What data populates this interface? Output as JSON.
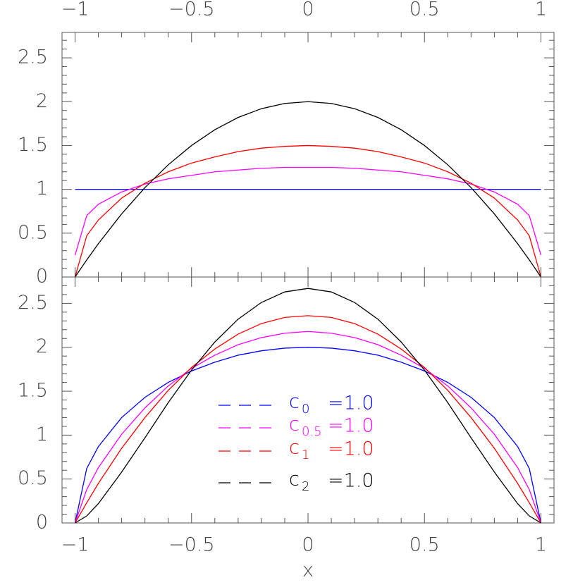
{
  "chart_data": [
    {
      "type": "line",
      "x": [
        -1,
        -0.95,
        -0.9,
        -0.8,
        -0.7,
        -0.6,
        -0.5,
        -0.4,
        -0.3,
        -0.2,
        -0.1,
        0,
        0.1,
        0.2,
        0.3,
        0.4,
        0.5,
        0.6,
        0.7,
        0.8,
        0.9,
        0.95,
        1
      ],
      "xlim": [
        -1.056,
        1.056
      ],
      "ylim": [
        0,
        2.79
      ],
      "xticks": [
        {
          "value": -1,
          "label": "−1"
        },
        {
          "value": -0.5,
          "label": "−0.5"
        },
        0,
        0.5,
        1
      ],
      "yticks": [
        0,
        0.5,
        1,
        1.5,
        2,
        2.5
      ],
      "xminorticks": [
        -0.9,
        -0.8,
        -0.7,
        -0.6,
        -0.4,
        -0.3,
        -0.2,
        -0.1,
        0.1,
        0.2,
        0.3,
        0.4,
        0.6,
        0.7,
        0.8,
        0.9
      ],
      "yminorticks": [
        0.1,
        0.2,
        0.3,
        0.4,
        0.6,
        0.7,
        0.8,
        0.9,
        1.1,
        1.2,
        1.3,
        1.4,
        1.6,
        1.7,
        1.8,
        1.9,
        2.1,
        2.2,
        2.3,
        2.4,
        2.6,
        2.7
      ],
      "x_tick_side": "top",
      "series": [
        {
          "color": "#0000ff",
          "values": [
            1,
            1,
            1,
            1,
            1,
            1,
            1,
            1,
            1,
            1,
            1,
            1,
            1,
            1,
            1,
            1,
            1,
            1,
            1,
            1,
            1,
            1,
            1
          ]
        },
        {
          "color": "#ff00ff",
          "values": [
            0.25,
            0.7,
            0.83,
            0.97,
            1.06,
            1.12,
            1.16,
            1.2,
            1.22,
            1.24,
            1.25,
            1.25,
            1.25,
            1.24,
            1.22,
            1.2,
            1.16,
            1.12,
            1.06,
            0.97,
            0.83,
            0.7,
            0.25
          ]
        },
        {
          "color": "#ff0000",
          "values": [
            0,
            0.47,
            0.65,
            0.9,
            1.07,
            1.2,
            1.3,
            1.37,
            1.43,
            1.47,
            1.49,
            1.5,
            1.49,
            1.47,
            1.43,
            1.37,
            1.3,
            1.2,
            1.07,
            0.9,
            0.65,
            0.47,
            0
          ]
        },
        {
          "color": "#000000",
          "values": [
            0,
            0.195,
            0.38,
            0.72,
            1.02,
            1.28,
            1.5,
            1.68,
            1.82,
            1.92,
            1.98,
            2,
            1.98,
            1.92,
            1.82,
            1.68,
            1.5,
            1.28,
            1.02,
            0.72,
            0.38,
            0.195,
            0
          ]
        }
      ]
    },
    {
      "type": "line",
      "x": [
        -1,
        -0.95,
        -0.9,
        -0.8,
        -0.7,
        -0.6,
        -0.5,
        -0.4,
        -0.3,
        -0.2,
        -0.1,
        0,
        0.1,
        0.2,
        0.3,
        0.4,
        0.5,
        0.6,
        0.7,
        0.8,
        0.9,
        0.95,
        1
      ],
      "xlim": [
        -1.056,
        1.056
      ],
      "ylim": [
        0,
        2.8
      ],
      "xticks": [
        {
          "value": -1,
          "label": "−1"
        },
        {
          "value": -0.5,
          "label": "−0.5"
        },
        0,
        0.5,
        1
      ],
      "yticks": [
        0,
        0.5,
        1,
        1.5,
        2,
        2.5
      ],
      "xminorticks": [
        -0.9,
        -0.8,
        -0.7,
        -0.6,
        -0.4,
        -0.3,
        -0.2,
        -0.1,
        0.1,
        0.2,
        0.3,
        0.4,
        0.6,
        0.7,
        0.8,
        0.9
      ],
      "yminorticks": [
        0.1,
        0.2,
        0.3,
        0.4,
        0.6,
        0.7,
        0.8,
        0.9,
        1.1,
        1.2,
        1.3,
        1.4,
        1.6,
        1.7,
        1.8,
        1.9,
        2.1,
        2.2,
        2.3,
        2.4,
        2.6,
        2.7
      ],
      "x_tick_side": "bottom",
      "xlabel": "x",
      "series": [
        {
          "name": "c",
          "subscript": "0",
          "value_text": "=1.0",
          "color": "#0000ff",
          "values": [
            0,
            0.62,
            0.87,
            1.2,
            1.43,
            1.6,
            1.73,
            1.83,
            1.91,
            1.96,
            1.99,
            2,
            1.99,
            1.96,
            1.91,
            1.83,
            1.73,
            1.6,
            1.43,
            1.2,
            0.87,
            0.62,
            0
          ]
        },
        {
          "name": "c",
          "subscript": "0.5",
          "value_text": "=1.0",
          "color": "#ff00ff",
          "values": [
            0,
            0.38,
            0.63,
            1.01,
            1.31,
            1.56,
            1.76,
            1.91,
            2.03,
            2.11,
            2.16,
            2.18,
            2.16,
            2.11,
            2.03,
            1.91,
            1.76,
            1.56,
            1.31,
            1.01,
            0.63,
            0.38,
            0
          ]
        },
        {
          "name": "c",
          "subscript": "1",
          "value_text": "=1.0",
          "color": "#ff0000",
          "values": [
            0,
            0.23,
            0.45,
            0.85,
            1.2,
            1.51,
            1.77,
            1.98,
            2.15,
            2.27,
            2.34,
            2.36,
            2.34,
            2.27,
            2.15,
            1.98,
            1.77,
            1.51,
            1.2,
            0.85,
            0.45,
            0.23,
            0
          ]
        },
        {
          "name": "c",
          "subscript": "2",
          "value_text": "=1.0",
          "color": "#000000",
          "values": [
            0,
            0.08,
            0.22,
            0.58,
            0.97,
            1.37,
            1.74,
            2.06,
            2.32,
            2.51,
            2.63,
            2.67,
            2.63,
            2.51,
            2.32,
            2.06,
            1.74,
            1.37,
            0.97,
            0.58,
            0.22,
            0.08,
            0
          ]
        }
      ],
      "legend": "center"
    }
  ]
}
